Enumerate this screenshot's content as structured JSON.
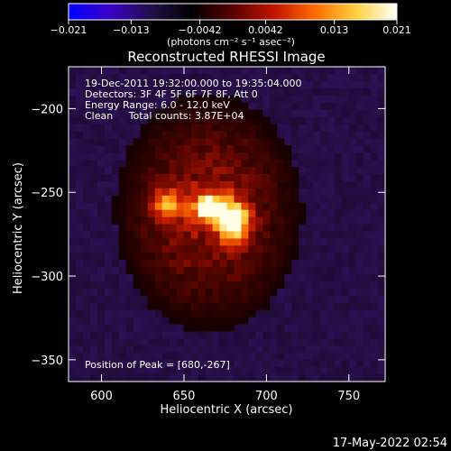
{
  "colorbar": {
    "tick_labels": [
      "−0.021",
      "−0.013",
      "−0.0042",
      "0.0042",
      "0.013",
      "0.021"
    ],
    "tick_values": [
      -0.021,
      -0.013,
      -0.0042,
      0.0042,
      0.013,
      0.021
    ],
    "range": [
      -0.021,
      0.021
    ],
    "unit_label": "(photons cm⁻² s⁻¹ asec⁻²)",
    "colors": [
      "#0000ff",
      "#3a00c8",
      "#24104a",
      "#000000",
      "#5a0000",
      "#c01400",
      "#ff6a00",
      "#ffd040",
      "#ffffff"
    ]
  },
  "chart_data": {
    "type": "heatmap",
    "title": "Reconstructed RHESSI Image",
    "xlabel": "Heliocentric X (arcsec)",
    "ylabel": "Heliocentric Y (arcsec)",
    "xlim": [
      580,
      772
    ],
    "ylim": [
      -363,
      -175
    ],
    "x_ticks": [
      600,
      650,
      700,
      750
    ],
    "y_ticks": [
      -200,
      -250,
      -300,
      -350
    ],
    "x_tick_labels": [
      "600",
      "650",
      "700",
      "750"
    ],
    "y_tick_labels": [
      "−200",
      "−250",
      "−300",
      "−350"
    ],
    "peak_position": [
      680,
      -267
    ],
    "annotations": [
      "19-Dec-2011 19:32:00.000 to 19:35:04.000",
      "Detectors: 3F 4F 5F 6F 7F 8F, Att 0",
      "Energy Range: 6.0 - 12.0 keV",
      "Clean     Total counts: 3.87E+04"
    ],
    "peak_label": "Position of Peak = [680,-267]"
  },
  "footer": {
    "timestamp": "17-May-2022 02:54"
  }
}
